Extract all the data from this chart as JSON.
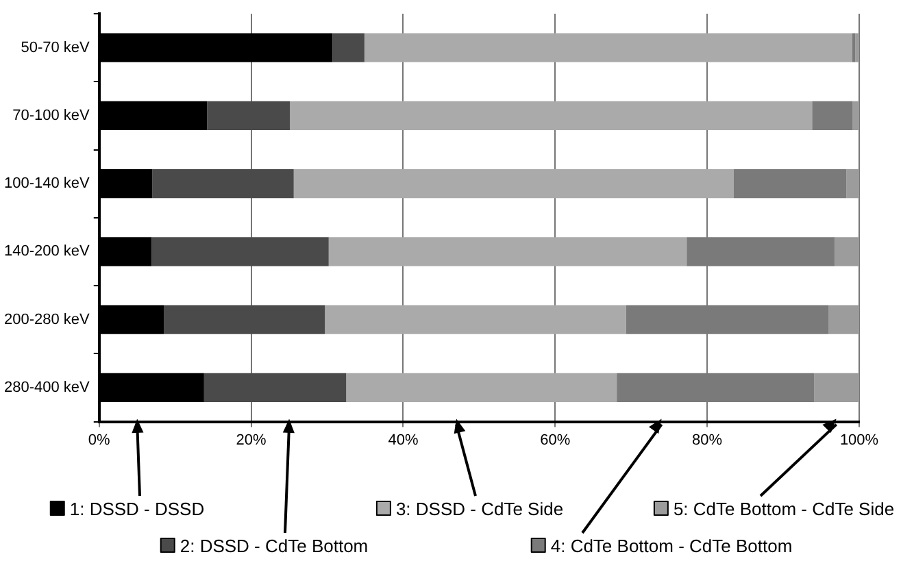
{
  "chart_data": {
    "type": "bar",
    "orientation": "horizontal",
    "stacked": true,
    "categories": [
      "50-70 keV",
      "70-100 keV",
      "100-140 keV",
      "140-200 keV",
      "200-280 keV",
      "280-400 keV"
    ],
    "series": [
      {
        "name": "1: DSSD - DSSD",
        "color": "#000000",
        "values": [
          30.7,
          14.2,
          7.0,
          6.9,
          8.5,
          13.8
        ]
      },
      {
        "name": "2: DSSD - CdTe Bottom",
        "color": "#4a4a4a",
        "values": [
          4.2,
          10.9,
          18.6,
          23.3,
          21.2,
          18.7
        ]
      },
      {
        "name": "3: DSSD - CdTe Side",
        "color": "#aaaaaa",
        "values": [
          64.2,
          68.7,
          57.9,
          47.1,
          39.6,
          35.6
        ]
      },
      {
        "name": "4: CdTe Bottom - CdTe Bottom",
        "color": "#7a7a7a",
        "values": [
          0.4,
          5.3,
          14.8,
          19.5,
          26.7,
          26.0
        ]
      },
      {
        "name": "5: CdTe Bottom - CdTe Side",
        "color": "#9c9c9c",
        "values": [
          0.5,
          0.9,
          1.7,
          3.2,
          4.0,
          5.9
        ]
      }
    ],
    "xlim": [
      0,
      100
    ],
    "xticks": [
      {
        "value": 0,
        "label": "0%"
      },
      {
        "value": 20,
        "label": "20%"
      },
      {
        "value": 40,
        "label": "40%"
      },
      {
        "value": 60,
        "label": "60%"
      },
      {
        "value": 80,
        "label": "80%"
      },
      {
        "value": 100,
        "label": "100%"
      }
    ],
    "grid": "x",
    "legend": "bottom"
  }
}
